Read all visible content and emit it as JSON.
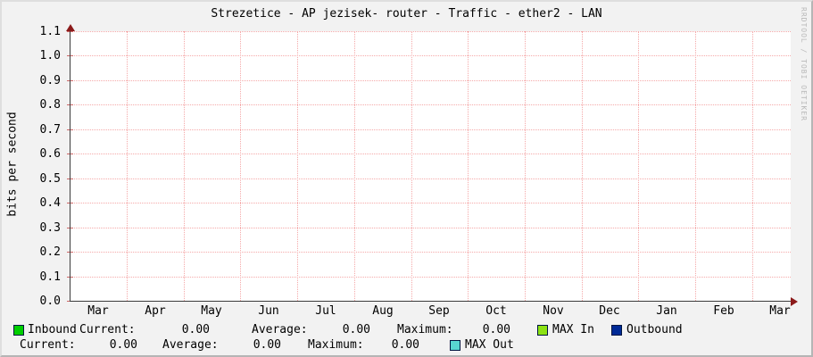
{
  "title": "Strezetice - AP jezisek- router - Traffic - ether2 - LAN",
  "watermark": "RRDTOOL / TOBI OETIKER",
  "colors": {
    "inbound": "#00CF00",
    "outbound": "#002A97",
    "max_in": "#8CE214",
    "max_out": "#58D7D2",
    "grid": "#F5A9A9",
    "axis": "#3B3B3B",
    "arrow": "#8B1A1A",
    "watermark": "#B9B9B9",
    "swatch_border": "#001540"
  },
  "chart_data": {
    "type": "line",
    "title": "Strezetice - AP jezisek- router - Traffic - ether2 - LAN",
    "xlabel": "",
    "ylabel": "bits per second",
    "ylim": [
      0.0,
      1.1
    ],
    "ytick_labels": [
      "1.1",
      "1.0",
      "0.9",
      "0.8",
      "0.7",
      "0.6",
      "0.5",
      "0.4",
      "0.3",
      "0.2",
      "0.1",
      "0.0"
    ],
    "xtick_labels": [
      "Mar",
      "Apr",
      "May",
      "Jun",
      "Jul",
      "Aug",
      "Sep",
      "Oct",
      "Nov",
      "Dec",
      "Jan",
      "Feb",
      "Mar"
    ],
    "grid": true,
    "legend_position": "bottom",
    "series": [
      {
        "name": "Inbound",
        "color": "#00CF00",
        "values": [],
        "stats": {
          "current": "0.00",
          "average": "0.00",
          "maximum": "0.00"
        }
      },
      {
        "name": "Outbound",
        "color": "#002A97",
        "values": [],
        "stats": {
          "current": "0.00",
          "average": "0.00",
          "maximum": "0.00"
        }
      },
      {
        "name": "MAX In",
        "color": "#8CE214",
        "values": []
      },
      {
        "name": "MAX Out",
        "color": "#58D7D2",
        "values": []
      }
    ]
  },
  "legend": {
    "inbound": {
      "label": "Inbound",
      "current_label": "Current:",
      "current": "0.00",
      "average_label": "Average:",
      "average": "0.00",
      "maximum_label": "Maximum:",
      "maximum": "0.00"
    },
    "max_in_label": "MAX In",
    "outbound_label": "Outbound",
    "outbound": {
      "current_label": "Current:",
      "current": "0.00",
      "average_label": "Average:",
      "average": "0.00",
      "maximum_label": "Maximum:",
      "maximum": "0.00"
    },
    "max_out_label": "MAX Out"
  }
}
